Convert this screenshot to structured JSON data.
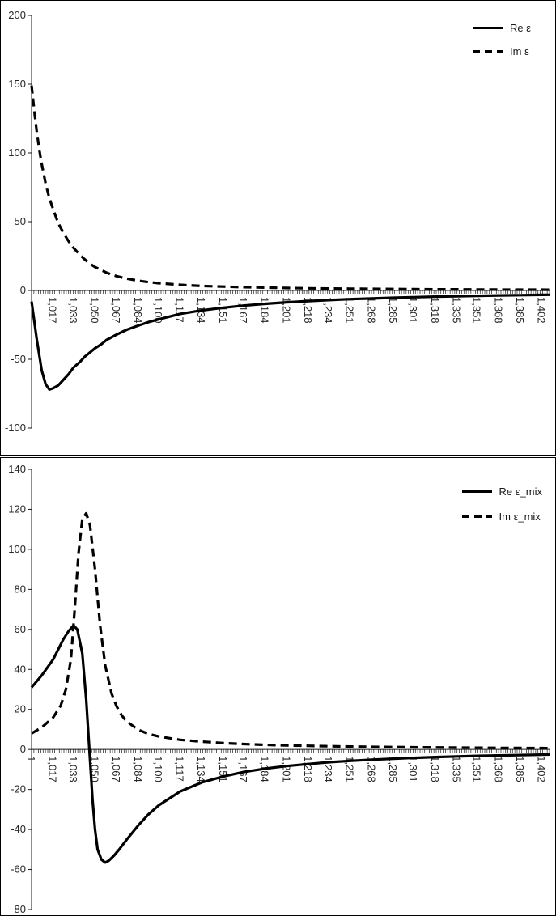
{
  "chart_data": [
    {
      "type": "line",
      "title": "",
      "xlabel": "",
      "ylabel": "",
      "ylim": [
        -100,
        200
      ],
      "ytick_step": 50,
      "xlim": [
        1.0,
        1.408
      ],
      "grid": false,
      "legend_position": "top-right",
      "xtick_labels": [
        "1,017",
        "1,033",
        "1,050",
        "1,067",
        "1,084",
        "1,100",
        "1,117",
        "1,134",
        "1,151",
        "1,167",
        "1,184",
        "1,201",
        "1,218",
        "1,234",
        "1,251",
        "1,268",
        "1,285",
        "1,301",
        "1,318",
        "1,335",
        "1,351",
        "1,368",
        "1,385",
        "1,402"
      ],
      "xtick_values": [
        1.017,
        1.033,
        1.05,
        1.067,
        1.084,
        1.1,
        1.117,
        1.134,
        1.151,
        1.167,
        1.184,
        1.201,
        1.218,
        1.234,
        1.251,
        1.268,
        1.285,
        1.301,
        1.318,
        1.335,
        1.351,
        1.368,
        1.385,
        1.402
      ],
      "series": [
        {
          "name": "Re ε",
          "style": "solid",
          "x": [
            1.0,
            1.004,
            1.008,
            1.011,
            1.014,
            1.017,
            1.021,
            1.025,
            1.029,
            1.033,
            1.038,
            1.042,
            1.046,
            1.05,
            1.055,
            1.059,
            1.063,
            1.067,
            1.075,
            1.084,
            1.092,
            1.1,
            1.117,
            1.134,
            1.151,
            1.167,
            1.184,
            1.201,
            1.218,
            1.234,
            1.251,
            1.268,
            1.285,
            1.301,
            1.318,
            1.335,
            1.351,
            1.368,
            1.385,
            1.402,
            1.408
          ],
          "y": [
            -8,
            -35,
            -58,
            -68,
            -72,
            -71,
            -69,
            -65,
            -61,
            -56,
            -52,
            -48,
            -45,
            -42,
            -39,
            -36,
            -34,
            -32,
            -28.5,
            -25.5,
            -23,
            -21,
            -17,
            -14.5,
            -12.5,
            -11,
            -9.7,
            -8.6,
            -7.7,
            -7,
            -6.3,
            -5.8,
            -5.3,
            -4.9,
            -4.5,
            -4.2,
            -3.9,
            -3.6,
            -3.4,
            -3.2,
            -3.1
          ]
        },
        {
          "name": "Im ε",
          "style": "dashed",
          "x": [
            1.0,
            1.002,
            1.004,
            1.006,
            1.008,
            1.011,
            1.014,
            1.017,
            1.021,
            1.025,
            1.029,
            1.033,
            1.038,
            1.042,
            1.046,
            1.05,
            1.055,
            1.059,
            1.063,
            1.067,
            1.075,
            1.084,
            1.092,
            1.1,
            1.117,
            1.134,
            1.151,
            1.167,
            1.184,
            1.201,
            1.218,
            1.234,
            1.251,
            1.268,
            1.285,
            1.301,
            1.318,
            1.335,
            1.351,
            1.368,
            1.385,
            1.402,
            1.408
          ],
          "y": [
            149,
            132,
            116,
            103,
            92,
            78,
            67,
            59,
            49,
            42,
            36,
            31,
            26,
            22.5,
            19.5,
            17,
            14.8,
            13,
            11.6,
            10.4,
            8.6,
            7.1,
            6.1,
            5.3,
            4.1,
            3.3,
            2.8,
            2.4,
            2.1,
            1.8,
            1.6,
            1.4,
            1.3,
            1.15,
            1.05,
            0.95,
            0.85,
            0.8,
            0.72,
            0.66,
            0.6,
            0.56,
            0.54
          ]
        }
      ]
    },
    {
      "type": "line",
      "title": "",
      "xlabel": "",
      "ylabel": "",
      "ylim": [
        -80,
        140
      ],
      "ytick_step": 20,
      "xlim": [
        1.0,
        1.408
      ],
      "grid": false,
      "legend_position": "top-right",
      "xtick_labels": [
        "1",
        "1,017",
        "1,033",
        "1,050",
        "1,067",
        "1,084",
        "1,100",
        "1,117",
        "1,134",
        "1,151",
        "1,167",
        "1,184",
        "1,201",
        "1,218",
        "1,234",
        "1,251",
        "1,268",
        "1,285",
        "1,301",
        "1,318",
        "1,335",
        "1,351",
        "1,368",
        "1,385",
        "1,402"
      ],
      "xtick_values": [
        1,
        1.017,
        1.033,
        1.05,
        1.067,
        1.084,
        1.1,
        1.117,
        1.134,
        1.151,
        1.167,
        1.184,
        1.201,
        1.218,
        1.234,
        1.251,
        1.268,
        1.285,
        1.301,
        1.318,
        1.335,
        1.351,
        1.368,
        1.385,
        1.402
      ],
      "series": [
        {
          "name": "Re ε_mix",
          "style": "solid",
          "x": [
            1.0,
            1.008,
            1.017,
            1.025,
            1.029,
            1.033,
            1.036,
            1.04,
            1.043,
            1.046,
            1.048,
            1.05,
            1.052,
            1.055,
            1.058,
            1.061,
            1.065,
            1.069,
            1.075,
            1.084,
            1.092,
            1.1,
            1.117,
            1.134,
            1.151,
            1.167,
            1.184,
            1.201,
            1.218,
            1.234,
            1.251,
            1.268,
            1.285,
            1.301,
            1.318,
            1.335,
            1.351,
            1.368,
            1.385,
            1.402,
            1.408
          ],
          "y": [
            31,
            37,
            45,
            55,
            59,
            62,
            60,
            48,
            25,
            -5,
            -25,
            -40,
            -50,
            -55,
            -56.5,
            -55.5,
            -53,
            -50,
            -45,
            -38,
            -32.5,
            -28,
            -21,
            -16.5,
            -13.5,
            -11.3,
            -9.6,
            -8.3,
            -7.3,
            -6.4,
            -5.7,
            -5.1,
            -4.6,
            -4.2,
            -3.8,
            -3.5,
            -3.2,
            -3.0,
            -2.8,
            -2.6,
            -2.5
          ]
        },
        {
          "name": "Im ε_mix",
          "style": "dashed",
          "x": [
            1.0,
            1.008,
            1.017,
            1.023,
            1.027,
            1.031,
            1.034,
            1.037,
            1.04,
            1.043,
            1.046,
            1.05,
            1.054,
            1.058,
            1.063,
            1.067,
            1.071,
            1.075,
            1.084,
            1.092,
            1.1,
            1.117,
            1.134,
            1.151,
            1.167,
            1.184,
            1.201,
            1.218,
            1.234,
            1.251,
            1.268,
            1.285,
            1.301,
            1.318,
            1.335,
            1.351,
            1.368,
            1.385,
            1.402,
            1.408
          ],
          "y": [
            8,
            11,
            16,
            22,
            30,
            45,
            70,
            98,
            115,
            118,
            112,
            90,
            62,
            42,
            28,
            21.5,
            17,
            14,
            9.8,
            7.8,
            6.5,
            4.8,
            3.9,
            3.2,
            2.7,
            2.3,
            2.0,
            1.8,
            1.6,
            1.45,
            1.3,
            1.2,
            1.1,
            1.0,
            0.92,
            0.85,
            0.78,
            0.72,
            0.67,
            0.65
          ]
        }
      ]
    }
  ]
}
